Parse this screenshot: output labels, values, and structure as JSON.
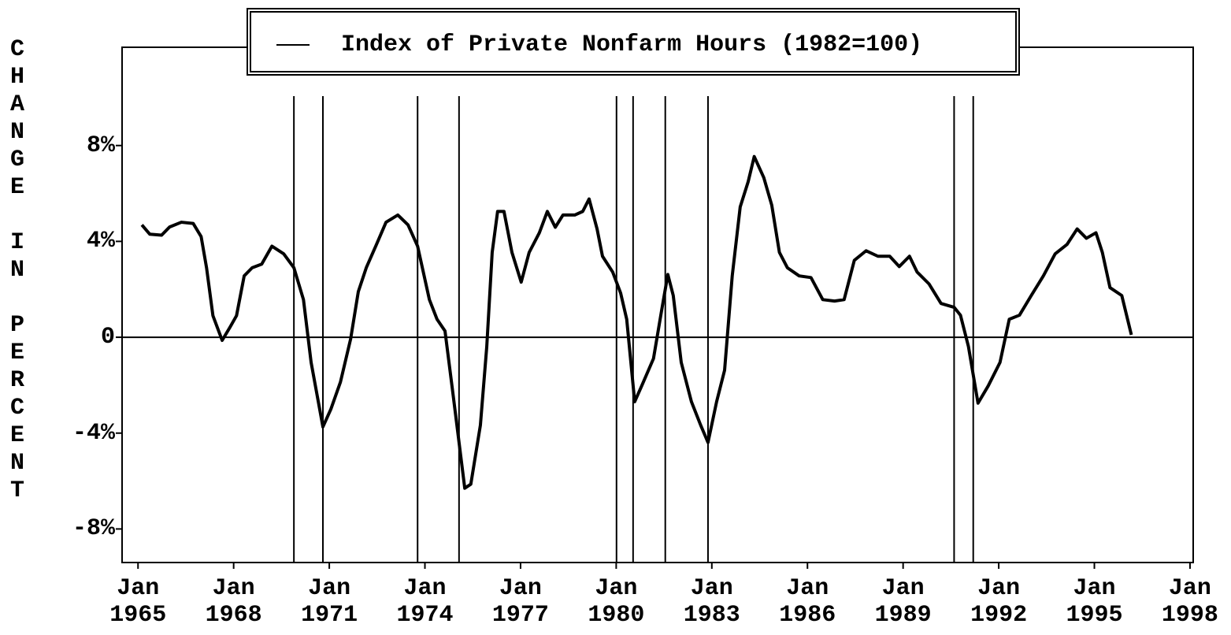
{
  "chart_data": {
    "type": "line",
    "y_label": "CHANGE IN PERCENT",
    "series": [
      {
        "name": "Index of Private Nonfarm Hours (1982=100)",
        "color": "#000000",
        "x": [
          1965.12,
          1965.37,
          1965.74,
          1965.99,
          1966.36,
          1966.73,
          1966.98,
          1967.15,
          1967.35,
          1967.64,
          1967.89,
          1968.09,
          1968.33,
          1968.58,
          1968.88,
          1969.2,
          1969.57,
          1969.89,
          1970.19,
          1970.43,
          1970.8,
          1971.05,
          1971.35,
          1971.67,
          1971.91,
          1972.16,
          1972.48,
          1972.78,
          1973.15,
          1973.47,
          1973.77,
          1974.14,
          1974.38,
          1974.63,
          1974.88,
          1975.25,
          1975.44,
          1975.74,
          1975.94,
          1976.11,
          1976.28,
          1976.48,
          1976.73,
          1977.02,
          1977.27,
          1977.59,
          1977.84,
          1978.09,
          1978.33,
          1978.7,
          1978.95,
          1979.15,
          1979.4,
          1979.57,
          1979.89,
          1980.14,
          1980.33,
          1980.58,
          1980.8,
          1981.17,
          1981.42,
          1981.62,
          1981.79,
          1982.04,
          1982.36,
          1982.65,
          1982.88,
          1983.15,
          1983.4,
          1983.64,
          1983.89,
          1984.14,
          1984.33,
          1984.63,
          1984.88,
          1985.12,
          1985.37,
          1985.74,
          1986.11,
          1986.48,
          1986.85,
          1987.15,
          1987.47,
          1987.84,
          1988.21,
          1988.58,
          1988.88,
          1989.2,
          1989.44,
          1989.81,
          1990.19,
          1990.6,
          1990.8,
          1991.05,
          1991.35,
          1991.67,
          1992.04,
          1992.33,
          1992.65,
          1993.02,
          1993.4,
          1993.77,
          1994.14,
          1994.46,
          1994.75,
          1995.05,
          1995.25,
          1995.49,
          1995.86,
          1996.16
        ],
        "values": [
          4.69,
          4.3,
          4.26,
          4.6,
          4.8,
          4.75,
          4.2,
          2.9,
          0.9,
          -0.13,
          0.43,
          0.9,
          2.56,
          2.9,
          3.05,
          3.8,
          3.48,
          2.9,
          1.57,
          -1.05,
          -3.74,
          -3.0,
          -1.87,
          -0.07,
          1.9,
          2.9,
          3.87,
          4.8,
          5.1,
          4.69,
          3.8,
          1.57,
          0.75,
          0.26,
          -2.36,
          -6.3,
          -6.13,
          -3.67,
          -0.39,
          3.54,
          5.25,
          5.25,
          3.54,
          2.3,
          3.54,
          4.36,
          5.25,
          4.59,
          5.1,
          5.1,
          5.25,
          5.77,
          4.52,
          3.38,
          2.72,
          1.84,
          0.75,
          -2.69,
          -2.03,
          -0.89,
          1.08,
          2.62,
          1.74,
          -1.05,
          -2.69,
          -3.67,
          -4.39,
          -2.69,
          -1.38,
          2.56,
          5.44,
          6.49,
          7.54,
          6.66,
          5.51,
          3.54,
          2.9,
          2.56,
          2.49,
          1.57,
          1.51,
          1.57,
          3.21,
          3.61,
          3.38,
          3.38,
          2.95,
          3.38,
          2.72,
          2.23,
          1.41,
          1.25,
          0.92,
          -0.39,
          -2.75,
          -2.03,
          -1.05,
          0.75,
          0.92,
          1.74,
          2.56,
          3.48,
          3.87,
          4.52,
          4.13,
          4.36,
          3.54,
          2.07,
          1.74,
          0.1
        ]
      }
    ],
    "recession_dates": [
      1969.89,
      1970.8,
      1973.77,
      1975.07,
      1980.01,
      1980.53,
      1981.54,
      1982.88,
      1990.6,
      1991.2
    ],
    "xlim": [
      1964.5,
      1998.1
    ],
    "xticks": [
      {
        "value": 1965,
        "label": "Jan 1965"
      },
      {
        "value": 1968,
        "label": "Jan 1968"
      },
      {
        "value": 1971,
        "label": "Jan 1971"
      },
      {
        "value": 1974,
        "label": "Jan 1974"
      },
      {
        "value": 1977,
        "label": "Jan 1977"
      },
      {
        "value": 1980,
        "label": "Jan 1980"
      },
      {
        "value": 1983,
        "label": "Jan 1983"
      },
      {
        "value": 1986,
        "label": "Jan 1986"
      },
      {
        "value": 1989,
        "label": "Jan 1989"
      },
      {
        "value": 1992,
        "label": "Jan 1992"
      },
      {
        "value": 1995,
        "label": "Jan 1995"
      },
      {
        "value": 1998,
        "label": "Jan 1998"
      }
    ],
    "ylim": [
      -9.4,
      12.1
    ],
    "yticks": [
      {
        "value": 8,
        "label": "8%"
      },
      {
        "value": 4,
        "label": "4%"
      },
      0,
      {
        "value": -4,
        "label": "-4%"
      },
      {
        "value": -8,
        "label": "-8%"
      }
    ]
  }
}
